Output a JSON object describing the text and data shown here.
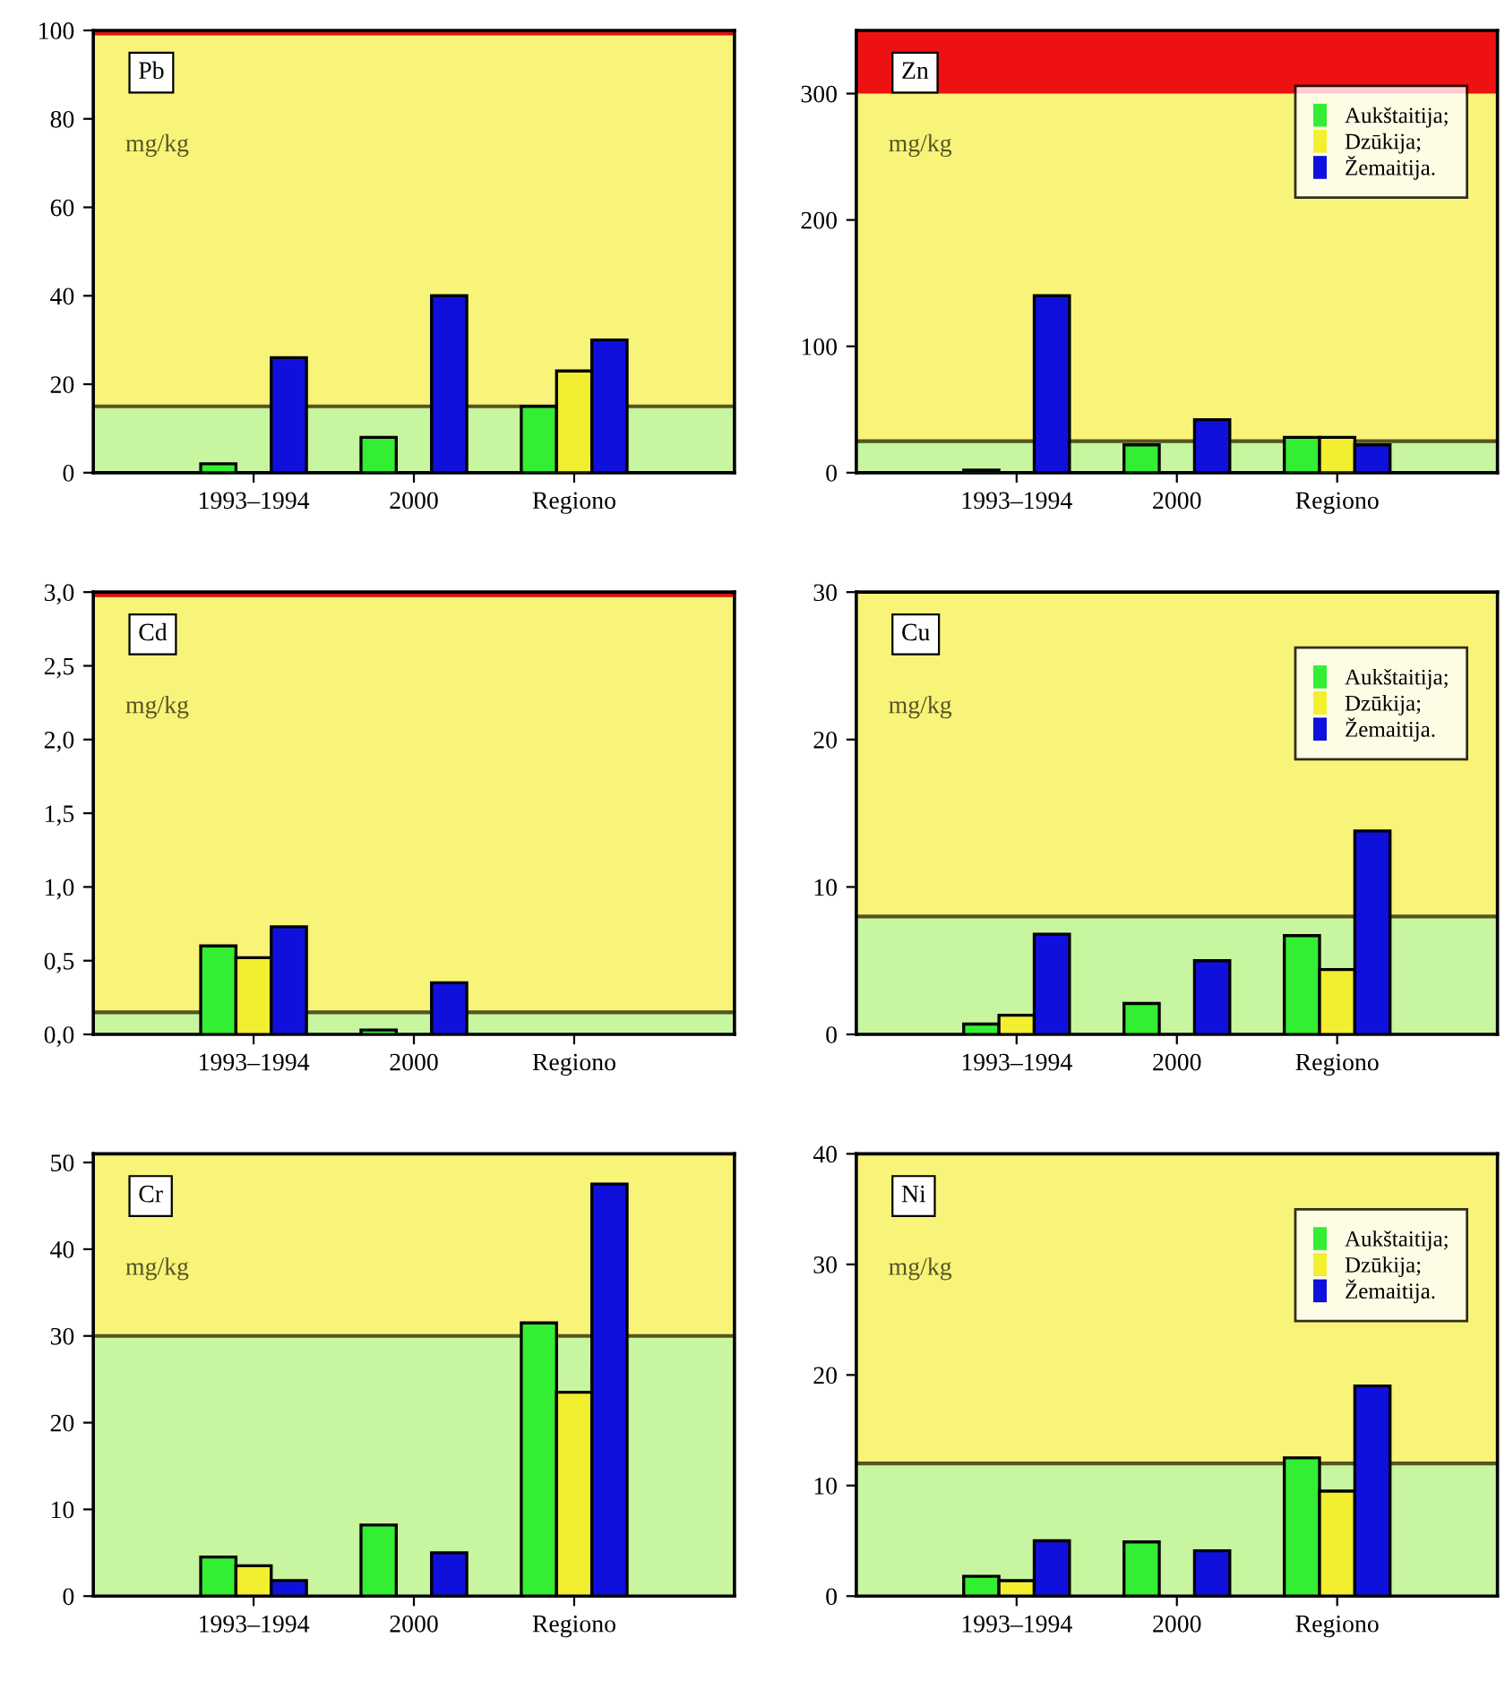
{
  "chart_data": [
    {
      "type": "bar",
      "title": "Pb",
      "ylabel": "mg/kg",
      "categories": [
        "1993–1994",
        "2000",
        "Regiono"
      ],
      "ylim": [
        0,
        100
      ],
      "yticks": [
        0,
        20,
        40,
        60,
        80,
        100
      ],
      "series": [
        {
          "color": "#33ee33",
          "values": [
            2,
            8,
            15
          ]
        },
        {
          "color": "#f2ee30",
          "values": [
            null,
            null,
            23
          ]
        },
        {
          "color": "#1010dd",
          "values": [
            26,
            40,
            30
          ]
        }
      ],
      "bands": [
        {
          "axis": "y",
          "from": 0,
          "to": 15,
          "color": "#c8f5a0"
        },
        {
          "axis": "y",
          "from": 15,
          "to": 100,
          "color": "#f8f47a"
        }
      ],
      "ref_lines": [
        {
          "axis": "y",
          "value": 15,
          "color": "#555522"
        },
        {
          "axis": "y",
          "value": 100,
          "color": "#dd1111"
        }
      ],
      "legend": false,
      "grid": false
    },
    {
      "type": "bar",
      "title": "Zn",
      "ylabel": "mg/kg",
      "categories": [
        "1993–1994",
        "2000",
        "Regiono"
      ],
      "ylim": [
        0,
        350
      ],
      "yticks": [
        0,
        100,
        200,
        300
      ],
      "series": [
        {
          "name": "Aukštaitija;",
          "color": "#33ee33",
          "values": [
            2,
            22,
            28
          ]
        },
        {
          "name": "Dzūkija;",
          "color": "#f2ee30",
          "values": [
            null,
            null,
            28
          ]
        },
        {
          "name": "Žemaitija.",
          "color": "#1010dd",
          "values": [
            140,
            42,
            22
          ]
        }
      ],
      "bands": [
        {
          "axis": "y",
          "from": 0,
          "to": 25,
          "color": "#c8f5a0"
        },
        {
          "axis": "y",
          "from": 25,
          "to": 300,
          "color": "#f8f47a"
        },
        {
          "axis": "y",
          "from": 300,
          "to": 350,
          "color": "#ee1111"
        }
      ],
      "ref_lines": [
        {
          "axis": "y",
          "value": 25,
          "color": "#555522"
        }
      ],
      "legend": "top right",
      "grid": false
    },
    {
      "type": "bar",
      "title": "Cd",
      "ylabel": "mg/kg",
      "categories": [
        "1993–1994",
        "2000",
        "Regiono"
      ],
      "ylim": [
        0,
        3
      ],
      "yticks": [
        {
          "value": 0,
          "label": "0,0"
        },
        {
          "value": 0.5,
          "label": "0,5"
        },
        {
          "value": 1,
          "label": "1,0"
        },
        {
          "value": 1.5,
          "label": "1,5"
        },
        {
          "value": 2,
          "label": "2,0"
        },
        {
          "value": 2.5,
          "label": "2,5"
        },
        {
          "value": 3,
          "label": "3,0"
        }
      ],
      "series": [
        {
          "color": "#33ee33",
          "values": [
            0.6,
            0.03,
            null
          ]
        },
        {
          "color": "#f2ee30",
          "values": [
            0.52,
            null,
            null
          ]
        },
        {
          "color": "#1010dd",
          "values": [
            0.73,
            0.35,
            null
          ]
        }
      ],
      "bands": [
        {
          "axis": "y",
          "from": 0,
          "to": 0.15,
          "color": "#c8f5a0"
        },
        {
          "axis": "y",
          "from": 0.15,
          "to": 3,
          "color": "#f8f47a"
        }
      ],
      "ref_lines": [
        {
          "axis": "y",
          "value": 0.15,
          "color": "#555522"
        },
        {
          "axis": "y",
          "value": 3,
          "color": "#dd1111"
        }
      ],
      "legend": false,
      "grid": false
    },
    {
      "type": "bar",
      "title": "Cu",
      "ylabel": "mg/kg",
      "categories": [
        "1993–1994",
        "2000",
        "Regiono"
      ],
      "ylim": [
        0,
        30
      ],
      "yticks": [
        0,
        10,
        20,
        30
      ],
      "series": [
        {
          "name": "Aukštaitija;",
          "color": "#33ee33",
          "values": [
            0.7,
            2.1,
            6.7
          ]
        },
        {
          "name": "Dzūkija;",
          "color": "#f2ee30",
          "values": [
            1.3,
            null,
            4.4
          ]
        },
        {
          "name": "Žemaitija.",
          "color": "#1010dd",
          "values": [
            6.8,
            5,
            13.8
          ]
        }
      ],
      "bands": [
        {
          "axis": "y",
          "from": 0,
          "to": 8,
          "color": "#c8f5a0"
        },
        {
          "axis": "y",
          "from": 8,
          "to": 30,
          "color": "#f8f47a"
        }
      ],
      "ref_lines": [
        {
          "axis": "y",
          "value": 8,
          "color": "#555522"
        }
      ],
      "legend": "top right",
      "grid": false
    },
    {
      "type": "bar",
      "title": "Cr",
      "ylabel": "mg/kg",
      "categories": [
        "1993–1994",
        "2000",
        "Regiono"
      ],
      "ylim": [
        0,
        51
      ],
      "yticks": [
        0,
        10,
        20,
        30,
        40,
        50
      ],
      "series": [
        {
          "color": "#33ee33",
          "values": [
            4.5,
            8.2,
            31.5
          ]
        },
        {
          "color": "#f2ee30",
          "values": [
            3.5,
            null,
            23.5
          ]
        },
        {
          "color": "#1010dd",
          "values": [
            1.8,
            5,
            47.5
          ]
        }
      ],
      "bands": [
        {
          "axis": "y",
          "from": 0,
          "to": 30,
          "color": "#c8f5a0"
        },
        {
          "axis": "y",
          "from": 30,
          "to": 51,
          "color": "#f8f47a"
        }
      ],
      "ref_lines": [
        {
          "axis": "y",
          "value": 30,
          "color": "#555522"
        }
      ],
      "legend": false,
      "grid": false
    },
    {
      "type": "bar",
      "title": "Ni",
      "ylabel": "mg/kg",
      "categories": [
        "1993–1994",
        "2000",
        "Regiono"
      ],
      "ylim": [
        0,
        40
      ],
      "yticks": [
        0,
        10,
        20,
        30,
        40
      ],
      "series": [
        {
          "name": "Aukštaitija;",
          "color": "#33ee33",
          "values": [
            1.8,
            4.9,
            12.5
          ]
        },
        {
          "name": "Dzūkija;",
          "color": "#f2ee30",
          "values": [
            1.4,
            null,
            9.5
          ]
        },
        {
          "name": "Žemaitija.",
          "color": "#1010dd",
          "values": [
            5,
            4.1,
            19
          ]
        }
      ],
      "bands": [
        {
          "axis": "y",
          "from": 0,
          "to": 12,
          "color": "#c8f5a0"
        },
        {
          "axis": "y",
          "from": 12,
          "to": 40,
          "color": "#f8f47a"
        }
      ],
      "ref_lines": [
        {
          "axis": "y",
          "value": 12,
          "color": "#555522"
        }
      ],
      "legend": "top right",
      "grid": false
    }
  ]
}
